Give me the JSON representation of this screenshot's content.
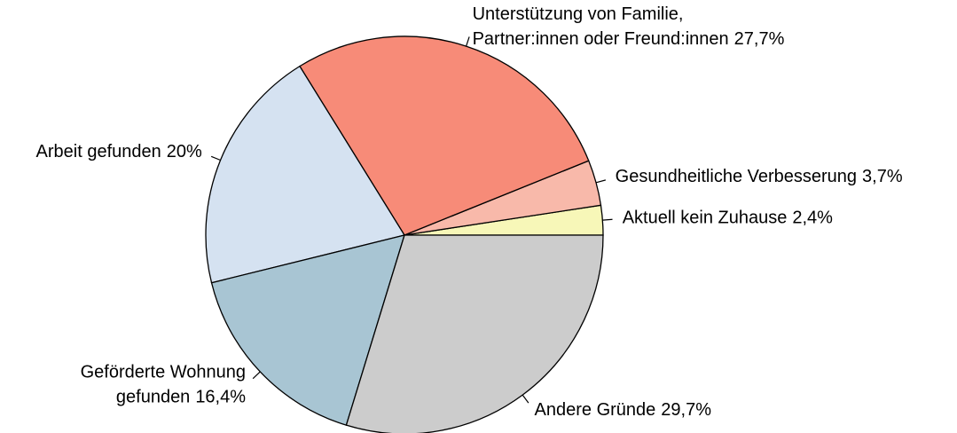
{
  "chart_data": {
    "type": "pie",
    "categories": [
      [
        "Aktuell kein Zuhause"
      ],
      [
        "Gesundheitliche Verbesserung"
      ],
      [
        "Unterstützung von Familie,",
        "Partner:innen oder Freund:innen"
      ],
      [
        "Arbeit gefunden"
      ],
      [
        "Geförderte Wohnung",
        "gefunden"
      ],
      [
        "Andere Gründe"
      ]
    ],
    "values": [
      2.4,
      3.7,
      27.7,
      20,
      16.4,
      29.7
    ],
    "value_labels": [
      "2,4%",
      "3,7%",
      "27,7%",
      "20%",
      "16,4%",
      "29,7%"
    ],
    "colors": [
      "#f7f7b8",
      "#f8b9aa",
      "#f78b78",
      "#d5e2f1",
      "#a8c5d3",
      "#cccccc"
    ]
  }
}
